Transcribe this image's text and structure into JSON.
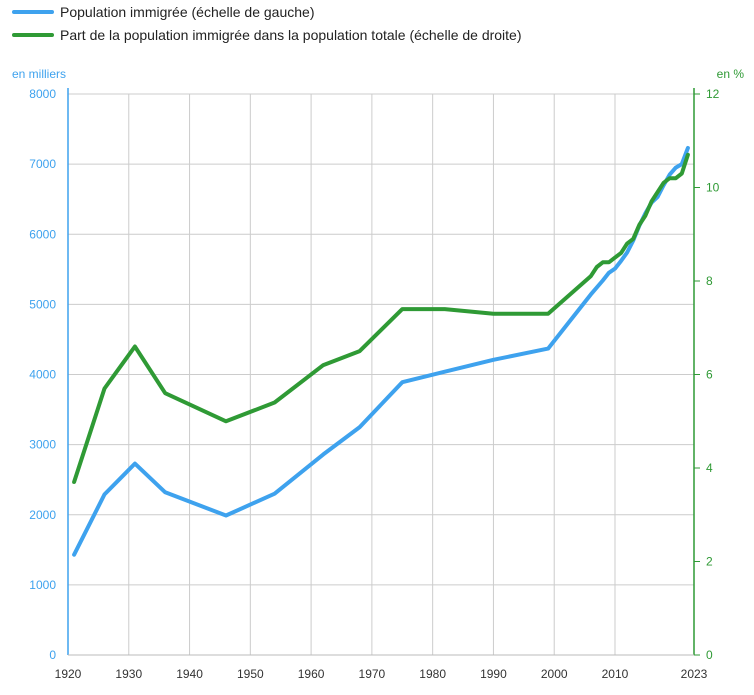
{
  "colors": {
    "series_left": "#3ea2ee",
    "series_right": "#2f9a35",
    "grid": "#cccccc",
    "tick_text": "#333333",
    "legend_text": "#222222"
  },
  "chart_data": {
    "type": "line",
    "legend_placement": "top-left",
    "grid": true,
    "xlim": [
      1920,
      2023
    ],
    "x_ticks": [
      1920,
      1930,
      1940,
      1950,
      1960,
      1970,
      1980,
      1990,
      2000,
      2010,
      2023
    ],
    "y_left": {
      "label": "en milliers",
      "lim": [
        0,
        8000
      ],
      "ticks": [
        0,
        1000,
        2000,
        3000,
        4000,
        5000,
        6000,
        7000,
        8000
      ]
    },
    "y_right": {
      "label": "en %",
      "lim": [
        0,
        12
      ],
      "ticks": [
        0,
        2,
        4,
        6,
        8,
        10,
        12
      ]
    },
    "series": [
      {
        "name": "Population immigrée (échelle de gauche)",
        "axis": "left",
        "points": [
          [
            1921,
            1430
          ],
          [
            1926,
            2290
          ],
          [
            1931,
            2730
          ],
          [
            1936,
            2320
          ],
          [
            1946,
            1990
          ],
          [
            1954,
            2300
          ],
          [
            1962,
            2860
          ],
          [
            1968,
            3250
          ],
          [
            1975,
            3890
          ],
          [
            1982,
            4040
          ],
          [
            1990,
            4210
          ],
          [
            1999,
            4370
          ],
          [
            2006,
            5140
          ],
          [
            2008,
            5340
          ],
          [
            2009,
            5450
          ],
          [
            2010,
            5510
          ],
          [
            2011,
            5620
          ],
          [
            2012,
            5740
          ],
          [
            2013,
            5910
          ],
          [
            2014,
            6120
          ],
          [
            2015,
            6300
          ],
          [
            2016,
            6450
          ],
          [
            2017,
            6530
          ],
          [
            2018,
            6700
          ],
          [
            2019,
            6850
          ],
          [
            2020,
            6950
          ],
          [
            2021,
            7000
          ],
          [
            2022,
            7230
          ]
        ]
      },
      {
        "name": "Part de la population immigrée dans la population totale (échelle de droite)",
        "axis": "right",
        "points": [
          [
            1921,
            3.7
          ],
          [
            1926,
            5.7
          ],
          [
            1931,
            6.6
          ],
          [
            1936,
            5.6
          ],
          [
            1946,
            5.0
          ],
          [
            1954,
            5.4
          ],
          [
            1962,
            6.2
          ],
          [
            1968,
            6.5
          ],
          [
            1975,
            7.4
          ],
          [
            1982,
            7.4
          ],
          [
            1990,
            7.3
          ],
          [
            1999,
            7.3
          ],
          [
            2006,
            8.1
          ],
          [
            2007,
            8.3
          ],
          [
            2008,
            8.4
          ],
          [
            2009,
            8.4
          ],
          [
            2010,
            8.5
          ],
          [
            2011,
            8.6
          ],
          [
            2012,
            8.8
          ],
          [
            2013,
            8.9
          ],
          [
            2014,
            9.2
          ],
          [
            2015,
            9.4
          ],
          [
            2016,
            9.7
          ],
          [
            2017,
            9.9
          ],
          [
            2018,
            10.1
          ],
          [
            2019,
            10.2
          ],
          [
            2020,
            10.2
          ],
          [
            2021,
            10.3
          ],
          [
            2022,
            10.7
          ]
        ]
      }
    ]
  }
}
